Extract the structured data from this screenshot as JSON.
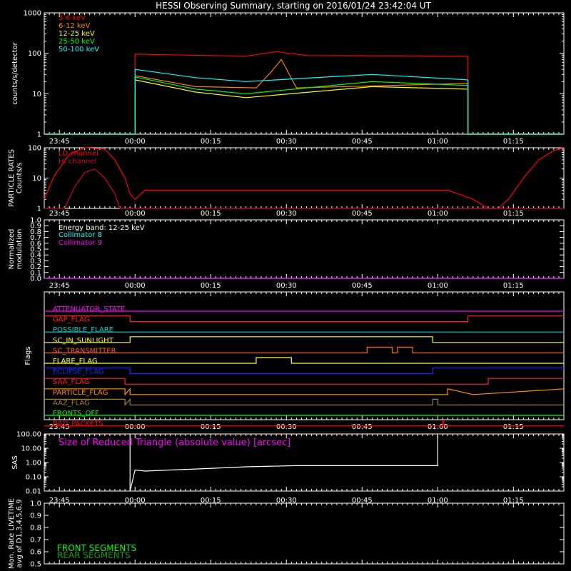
{
  "title": "HESSI Observing Summary, starting on 2016/01/24 23:42:04 UT",
  "time_ticks": [
    "23:45",
    "00:00",
    "00:15",
    "00:30",
    "00:45",
    "01:00",
    "01:15"
  ],
  "time_ticks_min": [
    3,
    18,
    33,
    48,
    63,
    78,
    93
  ],
  "chart_data": [
    {
      "type": "line",
      "id": "counts",
      "ylabel": "counts/s/detector",
      "yscale": "log",
      "ylim": [
        1,
        1000
      ],
      "yticks": [
        "1",
        "10",
        "100",
        "1000"
      ],
      "xlim_min": [
        0,
        103
      ],
      "legend": [
        {
          "name": "3-6 keV",
          "color": "#ff0000"
        },
        {
          "name": "6-12 keV",
          "color": "#ff8000"
        },
        {
          "name": "12-25 keV",
          "color": "#ffff00"
        },
        {
          "name": "25-50 keV",
          "color": "#00ff00"
        },
        {
          "name": "50-100 keV",
          "color": "#00ffff"
        }
      ],
      "series": [
        {
          "name": "3-6 keV",
          "color": "#ff0000",
          "x": [
            0,
            18,
            18,
            40,
            46,
            52,
            84,
            84,
            103
          ],
          "y": [
            1,
            1,
            95,
            85,
            110,
            88,
            85,
            1,
            1
          ]
        },
        {
          "name": "6-12 keV",
          "color": "#ff8000",
          "x": [
            0,
            18,
            18,
            30,
            42,
            45,
            47,
            50,
            84,
            84,
            103
          ],
          "y": [
            1,
            1,
            28,
            15,
            14,
            35,
            70,
            14,
            18,
            1,
            1
          ]
        },
        {
          "name": "12-25 keV",
          "color": "#ffff00",
          "x": [
            0,
            18,
            18,
            30,
            40,
            65,
            84,
            84,
            103
          ],
          "y": [
            1,
            1,
            22,
            11,
            8,
            15,
            13,
            1,
            1
          ]
        },
        {
          "name": "25-50 keV",
          "color": "#00ff00",
          "x": [
            0,
            18,
            18,
            30,
            40,
            65,
            84,
            84,
            103
          ],
          "y": [
            1,
            1,
            26,
            13,
            10,
            20,
            16,
            1,
            1
          ]
        },
        {
          "name": "50-100 keV",
          "color": "#00ffff",
          "x": [
            0,
            18,
            18,
            30,
            40,
            65,
            84,
            84,
            103
          ],
          "y": [
            1,
            1,
            40,
            25,
            20,
            30,
            22,
            1,
            1
          ]
        }
      ]
    },
    {
      "type": "line",
      "id": "particle",
      "ylabel": [
        "PARTICLE RATES",
        "Counts/s"
      ],
      "yscale": "log",
      "ylim": [
        1,
        100
      ],
      "yticks": [
        "1",
        "10",
        "100"
      ],
      "xlim_min": [
        0,
        103
      ],
      "legend": [
        {
          "name": "LO channel",
          "color": "#ff0000"
        },
        {
          "name": "HI channel",
          "color": "#cc0033"
        }
      ],
      "series": [
        {
          "name": "LO channel",
          "color": "#ff0000",
          "x": [
            0,
            2,
            5,
            8,
            12,
            14,
            16,
            17,
            18,
            20,
            22,
            40,
            60,
            80,
            85,
            88,
            89,
            90,
            92,
            95,
            98,
            101,
            103
          ],
          "y": [
            2,
            12,
            60,
            100,
            90,
            40,
            10,
            3,
            2,
            4,
            4,
            4,
            4,
            4,
            2,
            1,
            1,
            1,
            2,
            10,
            40,
            80,
            100
          ]
        },
        {
          "name": "HI channel",
          "color": "#cc0033",
          "x": [
            0,
            4,
            6,
            8,
            10,
            12,
            14,
            15,
            103
          ],
          "y": [
            1,
            1,
            5,
            15,
            20,
            10,
            3,
            1,
            1
          ]
        }
      ]
    },
    {
      "type": "line",
      "id": "modulation",
      "ylabel": [
        "Normalized",
        "modulation"
      ],
      "ylim": [
        0,
        1
      ],
      "yticks": [
        "0.0",
        "0.1",
        "0.2",
        "0.3",
        "0.4",
        "0.5",
        "0.6",
        "0.7",
        "0.8",
        "0.9",
        "1.0"
      ],
      "xlim_min": [
        0,
        103
      ],
      "annotation": "Energy band: 12-25 keV",
      "legend": [
        {
          "name": "Collimator 8",
          "color": "#00ffff"
        },
        {
          "name": "Collimator 9",
          "color": "#ff00ff"
        }
      ],
      "series": [
        {
          "name": "Collimator 8",
          "color": "#00ffff",
          "x": [
            0,
            103
          ],
          "y": [
            0,
            0
          ]
        },
        {
          "name": "Collimator 9",
          "color": "#ff00ff",
          "x": [
            0,
            103
          ],
          "y": [
            0,
            0
          ]
        }
      ]
    },
    {
      "type": "line",
      "id": "flags",
      "ylabel": "Flags",
      "xlim_min": [
        0,
        103
      ],
      "flags": [
        {
          "name": "ATTENUATOR_STATE",
          "color": "#ff00ff",
          "x": [
            0,
            103
          ],
          "y": [
            0,
            0
          ]
        },
        {
          "name": "GAP_FLAG",
          "color": "#ff2020",
          "x": [
            0,
            17,
            17,
            84,
            84,
            103
          ],
          "y": [
            1,
            1,
            0,
            0,
            1,
            1
          ]
        },
        {
          "name": "POSSIBLE_FLARE",
          "color": "#00cccc",
          "x": [
            0,
            103
          ],
          "y": [
            0,
            0
          ]
        },
        {
          "name": "SC_IN_SUNLIGHT",
          "color": "#ffff00",
          "x": [
            0,
            17,
            17,
            77,
            77,
            103
          ],
          "y": [
            0,
            0,
            1,
            1,
            0,
            0
          ]
        },
        {
          "name": "SC_TRANSMITTER",
          "color": "#ff6020",
          "x": [
            0,
            64,
            64,
            69,
            69,
            70,
            70,
            73,
            73,
            103
          ],
          "y": [
            0,
            0,
            1,
            1,
            0,
            0,
            1,
            1,
            0,
            0
          ]
        },
        {
          "name": "FLARE_FLAG",
          "color": "#ffff40",
          "x": [
            0,
            42,
            42,
            49,
            49,
            103
          ],
          "y": [
            0,
            0,
            1,
            1,
            0,
            0
          ]
        },
        {
          "name": "ECLIPSE_FLAG",
          "color": "#0030ff",
          "x": [
            0,
            17,
            17,
            77,
            77,
            103
          ],
          "y": [
            1,
            1,
            0,
            0,
            1,
            1
          ]
        },
        {
          "name": "SAA_FLAG",
          "color": "#ff2020",
          "x": [
            0,
            16,
            16,
            88,
            88,
            103
          ],
          "y": [
            1,
            1,
            0,
            0,
            1,
            1
          ]
        },
        {
          "name": "PARTICLE_FLAG",
          "color": "#ff9000",
          "x": [
            0,
            16,
            16,
            17,
            17,
            80,
            80,
            85,
            85,
            103
          ],
          "y": [
            1,
            1,
            0,
            1,
            0,
            0,
            1,
            0,
            0,
            1
          ]
        },
        {
          "name": "AAZ_FLAG",
          "color": "#a08020",
          "x": [
            0,
            16,
            16,
            17,
            17,
            77,
            77,
            78,
            78,
            103
          ],
          "y": [
            1,
            1,
            0,
            1,
            0,
            0,
            1,
            1,
            0,
            0
          ]
        },
        {
          "name": "FRONTS_OFF",
          "color": "#00ff00",
          "x": [
            0,
            103
          ],
          "y": [
            0,
            0
          ]
        },
        {
          "name": "BAD_PACKETS",
          "color": "#ff0000",
          "x": [
            0,
            79,
            79,
            79.2,
            79.2,
            103
          ],
          "y": [
            0,
            0,
            1,
            1,
            0,
            0
          ]
        }
      ]
    },
    {
      "type": "line",
      "id": "sas",
      "ylabel": "SAS",
      "yscale": "log",
      "ylim": [
        0.01,
        100
      ],
      "yticks": [
        "0.01",
        "0.10",
        "1.00",
        "10.00",
        "100.00"
      ],
      "xlim_min": [
        0,
        103
      ],
      "annotation": "Size of Reduced Triangle (absolute value) [arcsec]",
      "series": [
        {
          "name": "Size of Reduced Triangle (absolute value) [arcsec]",
          "color": "#ffffff",
          "x": [
            17,
            17,
            18,
            20,
            25,
            30,
            40,
            50,
            60,
            70,
            78,
            78
          ],
          "y": [
            100,
            0.01,
            0.3,
            0.25,
            0.3,
            0.35,
            0.5,
            0.6,
            0.6,
            0.6,
            0.6,
            100
          ]
        }
      ]
    },
    {
      "type": "line",
      "id": "livetime",
      "ylabel": [
        "Mon. Rate LIVETIME",
        "avg of D1,3,4,5,6,9"
      ],
      "ylim": [
        0.5,
        1.0
      ],
      "yticks": [
        "0.5",
        "0.6",
        "0.7",
        "0.8",
        "0.9",
        "1.0"
      ],
      "xlim_min": [
        0,
        103
      ],
      "legend": [
        {
          "name": "FRONT SEGMENTS",
          "color": "#00ff00"
        },
        {
          "name": "REAR SEGMENTS",
          "color": "#00a000"
        }
      ],
      "series": []
    }
  ]
}
